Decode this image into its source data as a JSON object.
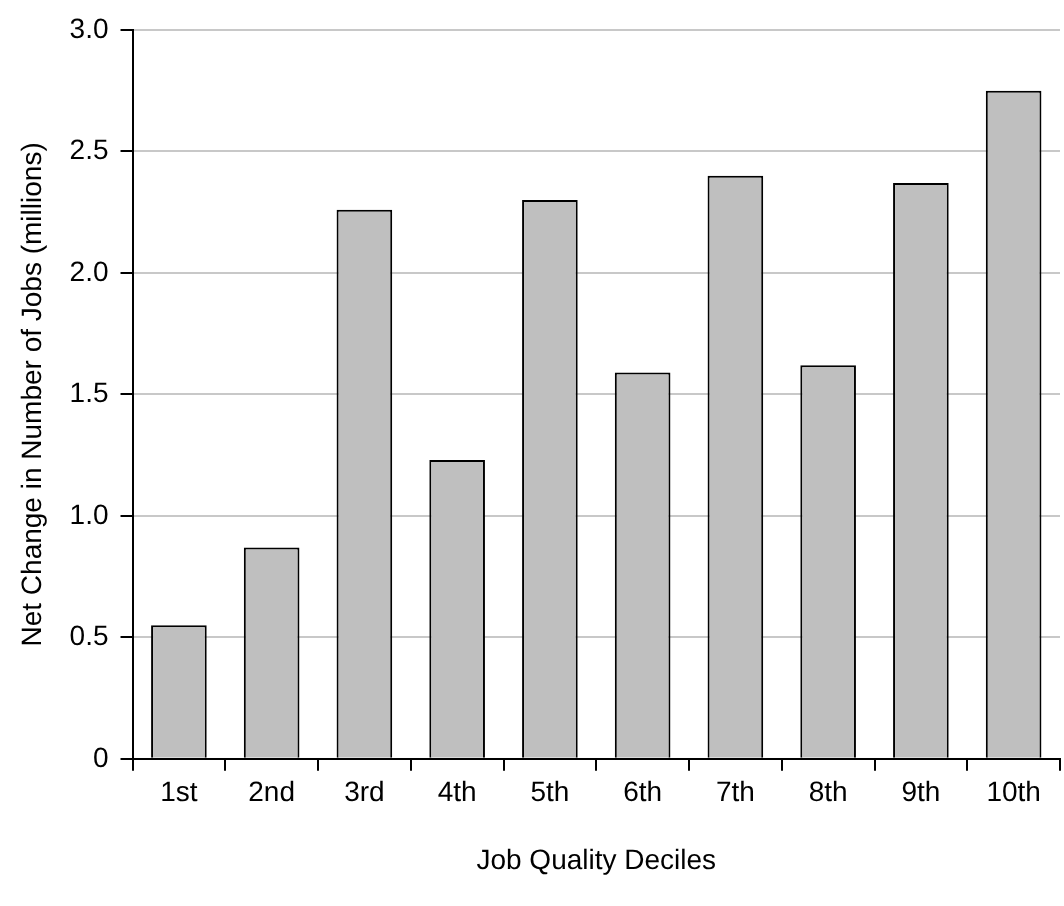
{
  "chart_data": {
    "type": "bar",
    "xlabel": "Job Quality Deciles",
    "ylabel": "Net Change in Number of Jobs (millions)",
    "categories": [
      "1st",
      "2nd",
      "3rd",
      "4th",
      "5th",
      "6th",
      "7th",
      "8th",
      "9th",
      "10th"
    ],
    "values": [
      0.55,
      0.87,
      2.26,
      1.23,
      2.3,
      1.59,
      2.4,
      1.62,
      2.37,
      2.75
    ],
    "color": "#bfbfbf",
    "ylim": [
      0,
      3
    ],
    "yticks": [
      {
        "value": 0,
        "label": "0"
      },
      0.5,
      {
        "value": 1,
        "label": "1.0"
      },
      1.5,
      {
        "value": 2,
        "label": "2.0"
      },
      2.5,
      {
        "value": 3,
        "label": "3.0"
      }
    ],
    "grid": "y",
    "legend": false
  }
}
